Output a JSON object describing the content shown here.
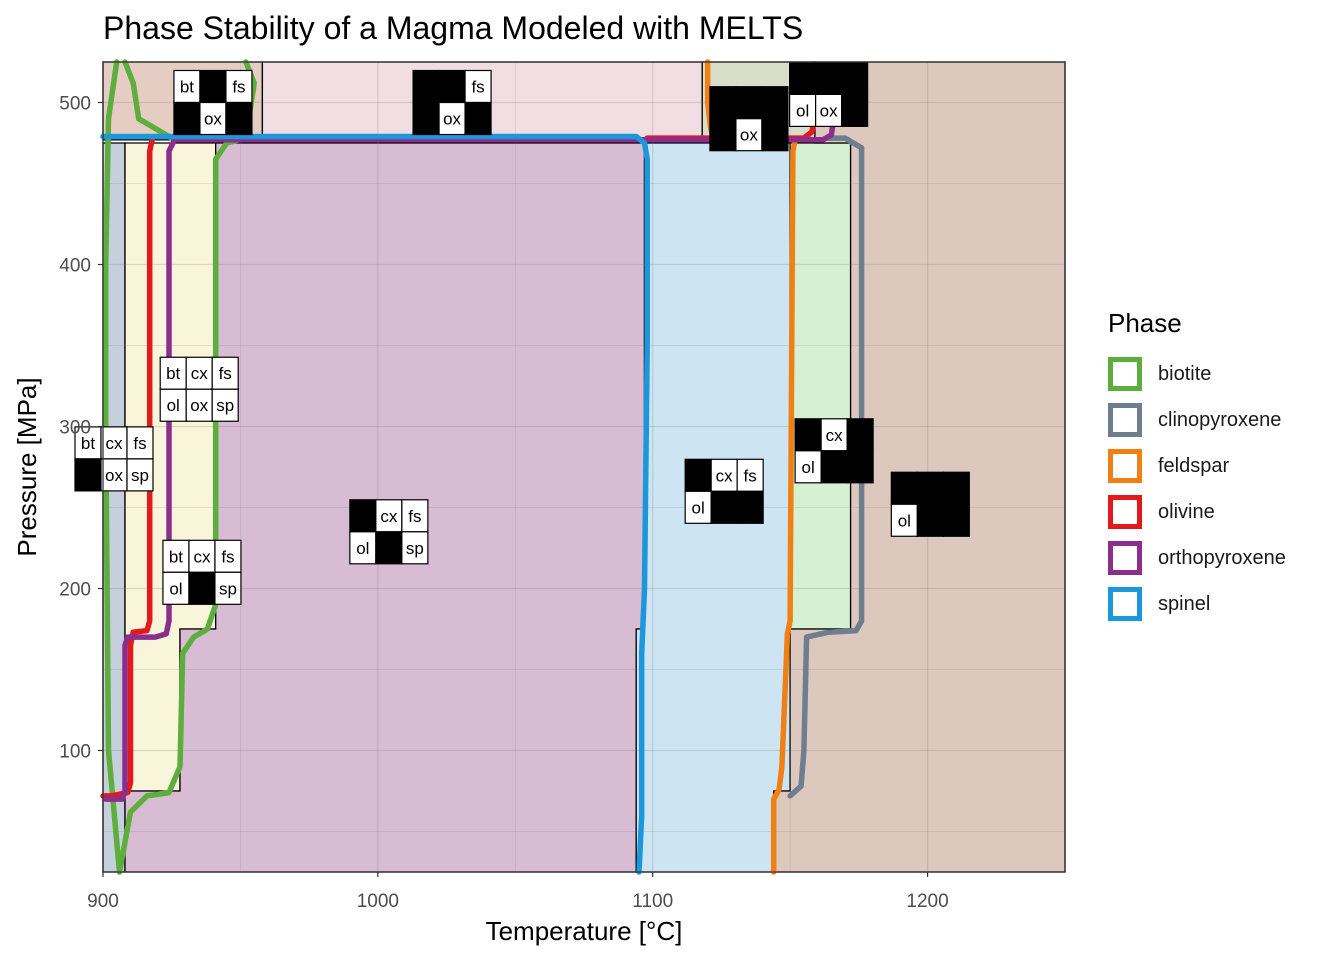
{
  "chart_data": {
    "type": "phase-diagram",
    "title": "Phase Stability of a Magma Modeled with MELTS",
    "xlabel": "Temperature [°C]",
    "ylabel": "Pressure [MPa]",
    "xlim": [
      900,
      1250
    ],
    "ylim": [
      25,
      525
    ],
    "x_ticks": [
      900,
      1000,
      1100,
      1200
    ],
    "y_ticks": [
      100,
      200,
      300,
      400,
      500
    ],
    "grid": true,
    "legend_position": "right",
    "legend_title": "Phase",
    "phases": [
      {
        "name": "biotite",
        "color": "#5DAE3C"
      },
      {
        "name": "clinopyroxene",
        "color": "#6F7E8F"
      },
      {
        "name": "feldspar",
        "color": "#F07F14"
      },
      {
        "name": "olivine",
        "color": "#E31A1C"
      },
      {
        "name": "orthopyroxene",
        "color": "#8B2E8C"
      },
      {
        "name": "spinel",
        "color": "#1C97DB"
      }
    ],
    "boundary_lines": [
      {
        "phase": "biotite",
        "points": [
          [
            905,
            525
          ],
          [
            902,
            490
          ],
          [
            901,
            400
          ],
          [
            901,
            300
          ],
          [
            902,
            100
          ],
          [
            906,
            25
          ]
        ]
      },
      {
        "phase": "biotite",
        "points": [
          [
            908,
            525
          ],
          [
            911,
            512
          ],
          [
            913,
            490
          ],
          [
            925,
            478
          ],
          [
            932,
            478
          ]
        ]
      },
      {
        "phase": "biotite",
        "points": [
          [
            952,
            525
          ],
          [
            955,
            512
          ],
          [
            952,
            478
          ],
          [
            945,
            475
          ],
          [
            941,
            465
          ],
          [
            941,
            190
          ],
          [
            938,
            175
          ],
          [
            933,
            170
          ],
          [
            929,
            160
          ],
          [
            928,
            90
          ],
          [
            924,
            74
          ],
          [
            916,
            72
          ],
          [
            910,
            62
          ],
          [
            906,
            25
          ]
        ]
      },
      {
        "phase": "clinopyroxene",
        "points": [
          [
            1163,
            478
          ],
          [
            1170,
            478
          ],
          [
            1176,
            472
          ],
          [
            1176,
            180
          ],
          [
            1174,
            174
          ],
          [
            1164,
            173
          ],
          [
            1156,
            170
          ],
          [
            1155,
            100
          ],
          [
            1154,
            78
          ],
          [
            1150,
            72
          ]
        ]
      },
      {
        "phase": "feldspar",
        "points": [
          [
            1120,
            525
          ],
          [
            1120,
            500
          ],
          [
            1121,
            485
          ],
          [
            1122,
            478
          ]
        ]
      },
      {
        "phase": "feldspar",
        "points": [
          [
            1152,
            478
          ],
          [
            1151,
            470
          ],
          [
            1150,
            180
          ],
          [
            1149,
            172
          ],
          [
            1148,
            130
          ],
          [
            1147,
            90
          ],
          [
            1146,
            76
          ],
          [
            1144,
            70
          ],
          [
            1144,
            25
          ]
        ]
      },
      {
        "phase": "olivine",
        "points": [
          [
            1098,
            478
          ],
          [
            1155,
            478
          ],
          [
            1158,
            482
          ],
          [
            1159,
            495
          ],
          [
            1161,
            500
          ]
        ]
      },
      {
        "phase": "olivine",
        "points": [
          [
            918,
            478
          ],
          [
            917,
            470
          ],
          [
            917,
            180
          ],
          [
            916,
            174
          ],
          [
            911,
            173
          ],
          [
            910,
            165
          ],
          [
            910,
            80
          ],
          [
            909,
            74
          ],
          [
            903,
            72
          ],
          [
            900,
            72
          ]
        ]
      },
      {
        "phase": "orthopyroxene",
        "points": [
          [
            1165,
            500
          ],
          [
            1166,
            492
          ],
          [
            1165,
            480
          ],
          [
            1162,
            477
          ],
          [
            926,
            477
          ],
          [
            924,
            470
          ],
          [
            924,
            180
          ],
          [
            923,
            172
          ],
          [
            919,
            170
          ],
          [
            909,
            170
          ],
          [
            908,
            165
          ],
          [
            908,
            75
          ],
          [
            907,
            70
          ],
          [
            901,
            70
          ]
        ]
      },
      {
        "phase": "spinel",
        "points": [
          [
            900,
            479
          ],
          [
            1094,
            479
          ],
          [
            1097,
            475
          ],
          [
            1098,
            465
          ],
          [
            1098,
            350
          ],
          [
            1097,
            200
          ],
          [
            1096,
            160
          ],
          [
            1096,
            60
          ],
          [
            1095,
            25
          ]
        ]
      }
    ],
    "regions": [
      {
        "assemblage": "bt cx fs ol ox sp",
        "fill": "#C5D0DC",
        "bounds": [
          [
            900,
            25
          ],
          [
            900,
            475
          ],
          [
            908,
            475
          ],
          [
            908,
            25
          ]
        ]
      },
      {
        "assemblage": "bt cx fs ol ox sp",
        "fill": "#F8F5DA",
        "bounds": [
          [
            908,
            75
          ],
          [
            908,
            475
          ],
          [
            941,
            475
          ],
          [
            941,
            175
          ],
          [
            928,
            175
          ],
          [
            928,
            75
          ]
        ]
      },
      {
        "assemblage": "cx fs ol sp",
        "fill": "#D8BCD4",
        "bounds": [
          [
            908,
            25
          ],
          [
            908,
            75
          ],
          [
            928,
            75
          ],
          [
            928,
            175
          ],
          [
            941,
            175
          ],
          [
            941,
            475
          ],
          [
            1097,
            475
          ],
          [
            1097,
            175
          ],
          [
            1094,
            175
          ],
          [
            1094,
            25
          ]
        ]
      },
      {
        "assemblage": "cx fs ol",
        "fill": "#CDE5F2",
        "bounds": [
          [
            1094,
            25
          ],
          [
            1094,
            175
          ],
          [
            1097,
            175
          ],
          [
            1097,
            475
          ],
          [
            1150,
            475
          ],
          [
            1150,
            75
          ],
          [
            1144,
            75
          ],
          [
            1144,
            25
          ]
        ]
      },
      {
        "assemblage": "cx ol",
        "fill": "#D6F0D4",
        "bounds": [
          [
            1150,
            175
          ],
          [
            1150,
            475
          ],
          [
            1172,
            475
          ],
          [
            1172,
            175
          ]
        ]
      },
      {
        "assemblage": "ol",
        "fill": "#DDC8BD",
        "bounds": [
          [
            1144,
            25
          ],
          [
            1144,
            75
          ],
          [
            1150,
            75
          ],
          [
            1150,
            175
          ],
          [
            1172,
            175
          ],
          [
            1172,
            475
          ],
          [
            1159,
            475
          ],
          [
            1159,
            525
          ],
          [
            1250,
            525
          ],
          [
            1250,
            25
          ]
        ]
      },
      {
        "assemblage": "bt fs ox",
        "fill": "#E6CDC4",
        "bounds": [
          [
            900,
            477
          ],
          [
            900,
            525
          ],
          [
            958,
            525
          ],
          [
            958,
            477
          ]
        ]
      },
      {
        "assemblage": "fs ox",
        "fill": "#F1DEE3",
        "bounds": [
          [
            958,
            477
          ],
          [
            958,
            525
          ],
          [
            1118,
            525
          ],
          [
            1118,
            477
          ]
        ]
      },
      {
        "assemblage": "ox",
        "fill": "#D8DEC9",
        "bounds": [
          [
            1118,
            477
          ],
          [
            1118,
            525
          ],
          [
            1159,
            525
          ],
          [
            1159,
            477
          ]
        ]
      }
    ],
    "labels": [
      {
        "x": 940,
        "y": 500,
        "cells": [
          [
            "bt",
            "",
            "fs"
          ],
          [
            "",
            "ox",
            ""
          ]
        ]
      },
      {
        "x": 1027,
        "y": 500,
        "cells": [
          [
            "",
            "",
            "fs"
          ],
          [
            "",
            "ox",
            ""
          ]
        ]
      },
      {
        "x": 1135,
        "y": 490,
        "cells": [
          [
            "",
            "",
            ""
          ],
          [
            "",
            "ox",
            ""
          ]
        ]
      },
      {
        "x": 1164,
        "y": 505,
        "cells": [
          [
            "",
            "",
            ""
          ],
          [
            "ol",
            "ox",
            ""
          ]
        ]
      },
      {
        "x": 935,
        "y": 323,
        "cells": [
          [
            "bt",
            "cx",
            "fs"
          ],
          [
            "ol",
            "ox",
            "sp"
          ]
        ]
      },
      {
        "x": 904,
        "y": 280,
        "cells": [
          [
            "bt",
            "cx",
            "fs"
          ],
          [
            "",
            "ox",
            "sp"
          ]
        ]
      },
      {
        "x": 936,
        "y": 210,
        "cells": [
          [
            "bt",
            "cx",
            "fs"
          ],
          [
            "ol",
            "",
            "sp"
          ]
        ]
      },
      {
        "x": 1004,
        "y": 235,
        "cells": [
          [
            "",
            "cx",
            "fs"
          ],
          [
            "ol",
            "",
            "sp"
          ]
        ]
      },
      {
        "x": 1126,
        "y": 260,
        "cells": [
          [
            "",
            "cx",
            "fs"
          ],
          [
            "ol",
            "",
            ""
          ]
        ]
      },
      {
        "x": 1166,
        "y": 285,
        "cells": [
          [
            "",
            "cx",
            ""
          ],
          [
            "ol",
            "",
            ""
          ]
        ]
      },
      {
        "x": 1201,
        "y": 252,
        "cells": [
          [
            "",
            "",
            ""
          ],
          [
            "ol",
            "",
            ""
          ]
        ]
      }
    ]
  }
}
